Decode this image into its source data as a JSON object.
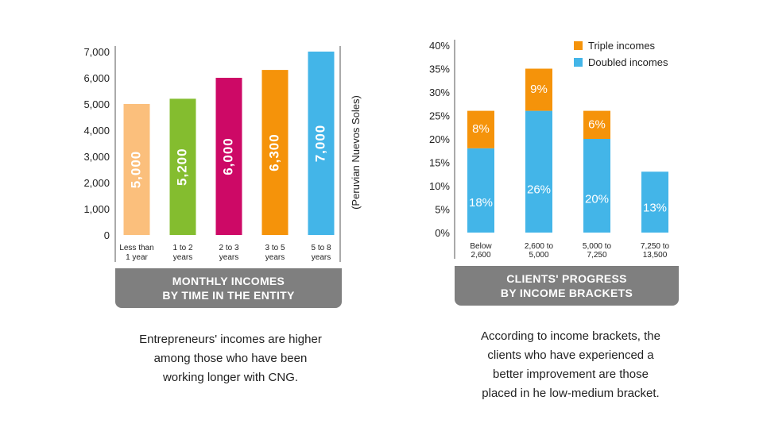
{
  "colors": {
    "left_bars": [
      "#fbbf7c",
      "#84bd2f",
      "#cd0966",
      "#f5930a",
      "#43b5e8"
    ],
    "doubled": "#43b5e8",
    "triple": "#f5930a",
    "banner": "#7f7f7f",
    "axis": "#555555"
  },
  "chart_data": [
    {
      "type": "bar",
      "categories": [
        [
          "Less than",
          "1 year"
        ],
        [
          "1 to 2",
          "years"
        ],
        [
          "2 to 3",
          "years"
        ],
        [
          "3 to 5",
          "years"
        ],
        [
          "5 to 8",
          "years"
        ]
      ],
      "values": [
        5000,
        5200,
        6000,
        6300,
        7000
      ],
      "data_labels": [
        "5,000",
        "5,200",
        "6,000",
        "6,300",
        "7,000"
      ],
      "yticks": [
        "0",
        "1,000",
        "2,000",
        "3,000",
        "4,000",
        "5,000",
        "6,000",
        "7,000"
      ],
      "ylim": [
        0,
        7000
      ],
      "ylabel_right": "(Peruvian Nuevos Soles)",
      "title": [
        "MONTHLY INCOMES",
        "BY TIME IN THE ENTITY"
      ]
    },
    {
      "type": "bar",
      "stacked": true,
      "categories": [
        [
          "Below",
          "2,600"
        ],
        [
          "2,600 to",
          "5,000"
        ],
        [
          "5,000 to",
          "7,250"
        ],
        [
          "7,250 to",
          "13,500"
        ]
      ],
      "series": [
        {
          "name": "Doubled incomes",
          "values": [
            18,
            26,
            20,
            13
          ],
          "labels": [
            "18%",
            "26%",
            "20%",
            "13%"
          ]
        },
        {
          "name": "Triple incomes",
          "values": [
            8,
            9,
            6,
            0
          ],
          "labels": [
            "8%",
            "9%",
            "6%",
            ""
          ]
        }
      ],
      "yticks": [
        "0%",
        "5%",
        "10%",
        "15%",
        "20%",
        "25%",
        "30%",
        "35%",
        "40%"
      ],
      "ylim": [
        0,
        40
      ],
      "legend_position": "top-right",
      "title": [
        "CLIENTS' PROGRESS",
        "BY INCOME BRACKETS"
      ]
    }
  ],
  "captions": {
    "left": [
      "Entrepreneurs' incomes are higher",
      "among those who have been",
      "working longer with CNG."
    ],
    "right": [
      "According to income brackets, the",
      "clients who have experienced a",
      "better improvement are those",
      "placed in he low-medium bracket."
    ]
  }
}
